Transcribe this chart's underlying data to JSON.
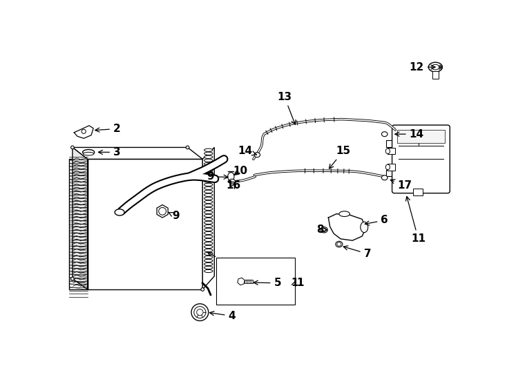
{
  "bg_color": "#ffffff",
  "lc": "#000000",
  "lw": 1.0,
  "fig_w": 7.34,
  "fig_h": 5.4,
  "dpi": 100
}
